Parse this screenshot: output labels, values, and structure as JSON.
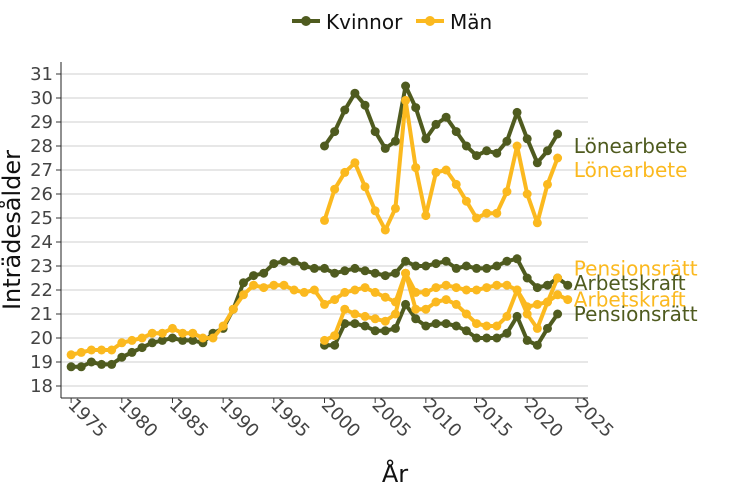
{
  "chart_data": {
    "type": "line",
    "xlabel": "År",
    "ylabel": "Inträdesålder",
    "xlim": [
      1974,
      2026
    ],
    "ylim": [
      17.5,
      31.5
    ],
    "xticks": [
      1975,
      1980,
      1985,
      1990,
      1995,
      2000,
      2005,
      2010,
      2015,
      2020,
      2025
    ],
    "yticks": [
      18,
      19,
      20,
      21,
      22,
      23,
      24,
      25,
      26,
      27,
      28,
      29,
      30,
      31
    ],
    "grid": "horizontal",
    "legend": {
      "position": "top",
      "entries": [
        "Kvinnor",
        "Män"
      ]
    },
    "colors": {
      "Kvinnor": "#4f5b1f",
      "Män": "#fbb91f"
    },
    "series": [
      {
        "name": "Kvinnor",
        "label": "Arbetskraft",
        "x": [
          1975,
          1976,
          1977,
          1978,
          1979,
          1980,
          1981,
          1982,
          1983,
          1984,
          1985,
          1986,
          1987,
          1988,
          1989,
          1990,
          1991,
          1992,
          1993,
          1994,
          1995,
          1996,
          1997,
          1998,
          1999,
          2000,
          2001,
          2002,
          2003,
          2004,
          2005,
          2006,
          2007,
          2008,
          2009,
          2010,
          2011,
          2012,
          2013,
          2014,
          2015,
          2016,
          2017,
          2018,
          2019,
          2020,
          2021,
          2022,
          2023,
          2024
        ],
        "y": [
          18.8,
          18.8,
          19.0,
          18.9,
          18.9,
          19.2,
          19.4,
          19.6,
          19.8,
          19.9,
          20.0,
          19.9,
          19.9,
          19.8,
          20.2,
          20.4,
          21.2,
          22.3,
          22.6,
          22.7,
          23.1,
          23.2,
          23.2,
          23.0,
          22.9,
          22.9,
          22.7,
          22.8,
          22.9,
          22.8,
          22.7,
          22.6,
          22.7,
          23.2,
          23.0,
          23.0,
          23.1,
          23.2,
          22.9,
          23.0,
          22.9,
          22.9,
          23.0,
          23.2,
          23.3,
          22.5,
          22.1,
          22.2,
          22.5,
          22.2
        ]
      },
      {
        "name": "Män",
        "label": "Arbetskraft",
        "x": [
          1975,
          1976,
          1977,
          1978,
          1979,
          1980,
          1981,
          1982,
          1983,
          1984,
          1985,
          1986,
          1987,
          1988,
          1989,
          1990,
          1991,
          1992,
          1993,
          1994,
          1995,
          1996,
          1997,
          1998,
          1999,
          2000,
          2001,
          2002,
          2003,
          2004,
          2005,
          2006,
          2007,
          2008,
          2009,
          2010,
          2011,
          2012,
          2013,
          2014,
          2015,
          2016,
          2017,
          2018,
          2019,
          2020,
          2021,
          2022,
          2023,
          2024
        ],
        "y": [
          19.3,
          19.4,
          19.5,
          19.5,
          19.5,
          19.8,
          19.9,
          20.0,
          20.2,
          20.2,
          20.4,
          20.2,
          20.2,
          20.0,
          20.0,
          20.5,
          21.2,
          21.8,
          22.2,
          22.1,
          22.2,
          22.2,
          22.0,
          21.9,
          22.0,
          21.4,
          21.6,
          21.9,
          22.0,
          22.1,
          21.9,
          21.7,
          21.5,
          22.7,
          21.9,
          21.9,
          22.1,
          22.2,
          22.1,
          22.0,
          22.0,
          22.1,
          22.2,
          22.2,
          22.0,
          21.3,
          21.4,
          21.5,
          21.8,
          21.6
        ]
      },
      {
        "name": "Kvinnor",
        "label": "Lönearbete",
        "x": [
          2000,
          2001,
          2002,
          2003,
          2004,
          2005,
          2006,
          2007,
          2008,
          2009,
          2010,
          2011,
          2012,
          2013,
          2014,
          2015,
          2016,
          2017,
          2018,
          2019,
          2020,
          2021,
          2022,
          2023
        ],
        "y": [
          28.0,
          28.6,
          29.5,
          30.2,
          29.7,
          28.6,
          27.9,
          28.2,
          30.5,
          29.6,
          28.3,
          28.9,
          29.2,
          28.6,
          28.0,
          27.6,
          27.8,
          27.7,
          28.2,
          29.4,
          28.3,
          27.3,
          27.8,
          28.5
        ]
      },
      {
        "name": "Män",
        "label": "Lönearbete",
        "x": [
          2000,
          2001,
          2002,
          2003,
          2004,
          2005,
          2006,
          2007,
          2008,
          2009,
          2010,
          2011,
          2012,
          2013,
          2014,
          2015,
          2016,
          2017,
          2018,
          2019,
          2020,
          2021,
          2022,
          2023
        ],
        "y": [
          24.9,
          26.2,
          26.9,
          27.3,
          26.3,
          25.3,
          24.5,
          25.4,
          29.9,
          27.1,
          25.1,
          26.9,
          27.0,
          26.4,
          25.7,
          25.0,
          25.2,
          25.2,
          26.1,
          28.0,
          26.0,
          24.8,
          26.4,
          27.5
        ]
      },
      {
        "name": "Kvinnor",
        "label": "Pensionsrätt",
        "x": [
          2000,
          2001,
          2002,
          2003,
          2004,
          2005,
          2006,
          2007,
          2008,
          2009,
          2010,
          2011,
          2012,
          2013,
          2014,
          2015,
          2016,
          2017,
          2018,
          2019,
          2020,
          2021,
          2022,
          2023
        ],
        "y": [
          19.7,
          19.7,
          20.6,
          20.6,
          20.5,
          20.3,
          20.3,
          20.4,
          21.4,
          20.8,
          20.5,
          20.6,
          20.6,
          20.5,
          20.3,
          20.0,
          20.0,
          20.0,
          20.2,
          20.9,
          19.9,
          19.7,
          20.4,
          21.0
        ]
      },
      {
        "name": "Män",
        "label": "Pensionsrätt",
        "x": [
          2000,
          2001,
          2002,
          2003,
          2004,
          2005,
          2006,
          2007,
          2008,
          2009,
          2010,
          2011,
          2012,
          2013,
          2014,
          2015,
          2016,
          2017,
          2018,
          2019,
          2020,
          2021,
          2022,
          2023
        ],
        "y": [
          19.9,
          20.1,
          21.2,
          21.0,
          20.9,
          20.8,
          20.7,
          21.0,
          22.7,
          21.2,
          21.2,
          21.5,
          21.6,
          21.4,
          21.0,
          20.6,
          20.5,
          20.5,
          20.9,
          22.0,
          21.0,
          20.4,
          21.5,
          22.5
        ]
      }
    ],
    "series_labels": [
      {
        "text": "Lönearbete",
        "series": "Kvinnor",
        "at_y": 28.0
      },
      {
        "text": "Lönearbete",
        "series": "Män",
        "at_y": 27.0
      },
      {
        "text": "Pensionsrätt",
        "series": "Män",
        "at_y": 22.9
      },
      {
        "text": "Arbetskraft",
        "series": "Kvinnor",
        "at_y": 22.3
      },
      {
        "text": "Arbetskraft",
        "series": "Män",
        "at_y": 21.6
      },
      {
        "text": "Pensionsrätt",
        "series": "Kvinnor",
        "at_y": 21.0
      }
    ]
  }
}
